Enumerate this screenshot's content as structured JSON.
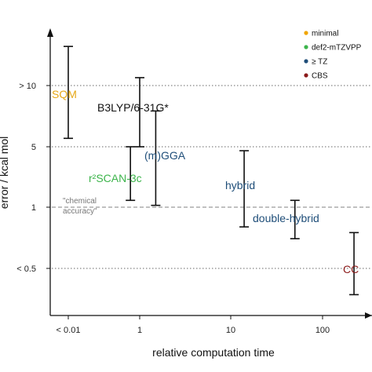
{
  "chart_data": {
    "type": "errorbar",
    "xlabel": "relative computation time",
    "ylabel": "error / kcal mol",
    "x_scale": "log",
    "x_ticks": [
      {
        "value": 0.01,
        "label": "< 0.01"
      },
      {
        "value": 1,
        "label": "1"
      },
      {
        "value": 10,
        "label": "10"
      },
      {
        "value": 100,
        "label": "100"
      }
    ],
    "y_ticks": [
      {
        "value": 0.5,
        "label": "< 0.5"
      },
      {
        "value": 1,
        "label": "1"
      },
      {
        "value": 5,
        "label": "5"
      },
      {
        "value": 10,
        "label": "> 10"
      }
    ],
    "reference_lines": [
      {
        "y": 0.5,
        "style": "dotted",
        "color": "#9a9a9a"
      },
      {
        "y": 1,
        "style": "dashed",
        "color": "#9a9a9a",
        "label": "\"chemical\naccuracy\""
      },
      {
        "y": 5,
        "style": "dotted",
        "color": "#9a9a9a"
      },
      {
        "y": 10,
        "style": "dotted",
        "color": "#9a9a9a"
      }
    ],
    "legend": {
      "placement": "top-right",
      "items": [
        {
          "label": "minimal",
          "color": "#f0a500"
        },
        {
          "label": "def2-mTZVPP",
          "color": "#3cb44b"
        },
        {
          "label": "≥ TZ",
          "color": "#1f4e79"
        },
        {
          "label": "CBS",
          "color": "#8b1a1a"
        }
      ]
    },
    "series": [
      {
        "name": "SQM",
        "x": 0.01,
        "y_low": 5.5,
        "y_high": 20,
        "color": "#e6a817"
      },
      {
        "name": "B3LYP/6-31G*",
        "x": 1,
        "y_low": 5,
        "y_high": 11.5,
        "color": "#000000"
      },
      {
        "name": "r2SCAN-3c",
        "x": 0.55,
        "y_low": 1.2,
        "y_high": 5,
        "color": "#3cb44b"
      },
      {
        "name": "(m)GGA",
        "x": 1.5,
        "y_low": 1.05,
        "y_high": 7.5,
        "color": "#1f4e79"
      },
      {
        "name": "hybrid",
        "x": 14,
        "y_low": 0.8,
        "y_high": 4.5,
        "color": "#1f4e79"
      },
      {
        "name": "double-hybrid",
        "x": 50,
        "y_low": 0.7,
        "y_high": 1.2,
        "color": "#1f4e79"
      },
      {
        "name": "CC",
        "x": 220,
        "y_low": 0.3,
        "y_high": 0.75,
        "color": "#8b1a1a"
      }
    ]
  },
  "labels": {
    "SQM": "SQM",
    "B3LYP": "B3LYP/6-31G*",
    "r2scan": "r²SCAN-3c",
    "mgga": "(m)GGA",
    "hybrid": "hybrid",
    "doublehybrid": "double-hybrid",
    "cc": "CC",
    "chem_line1": "\"chemical",
    "chem_line2": "accuracy\""
  }
}
